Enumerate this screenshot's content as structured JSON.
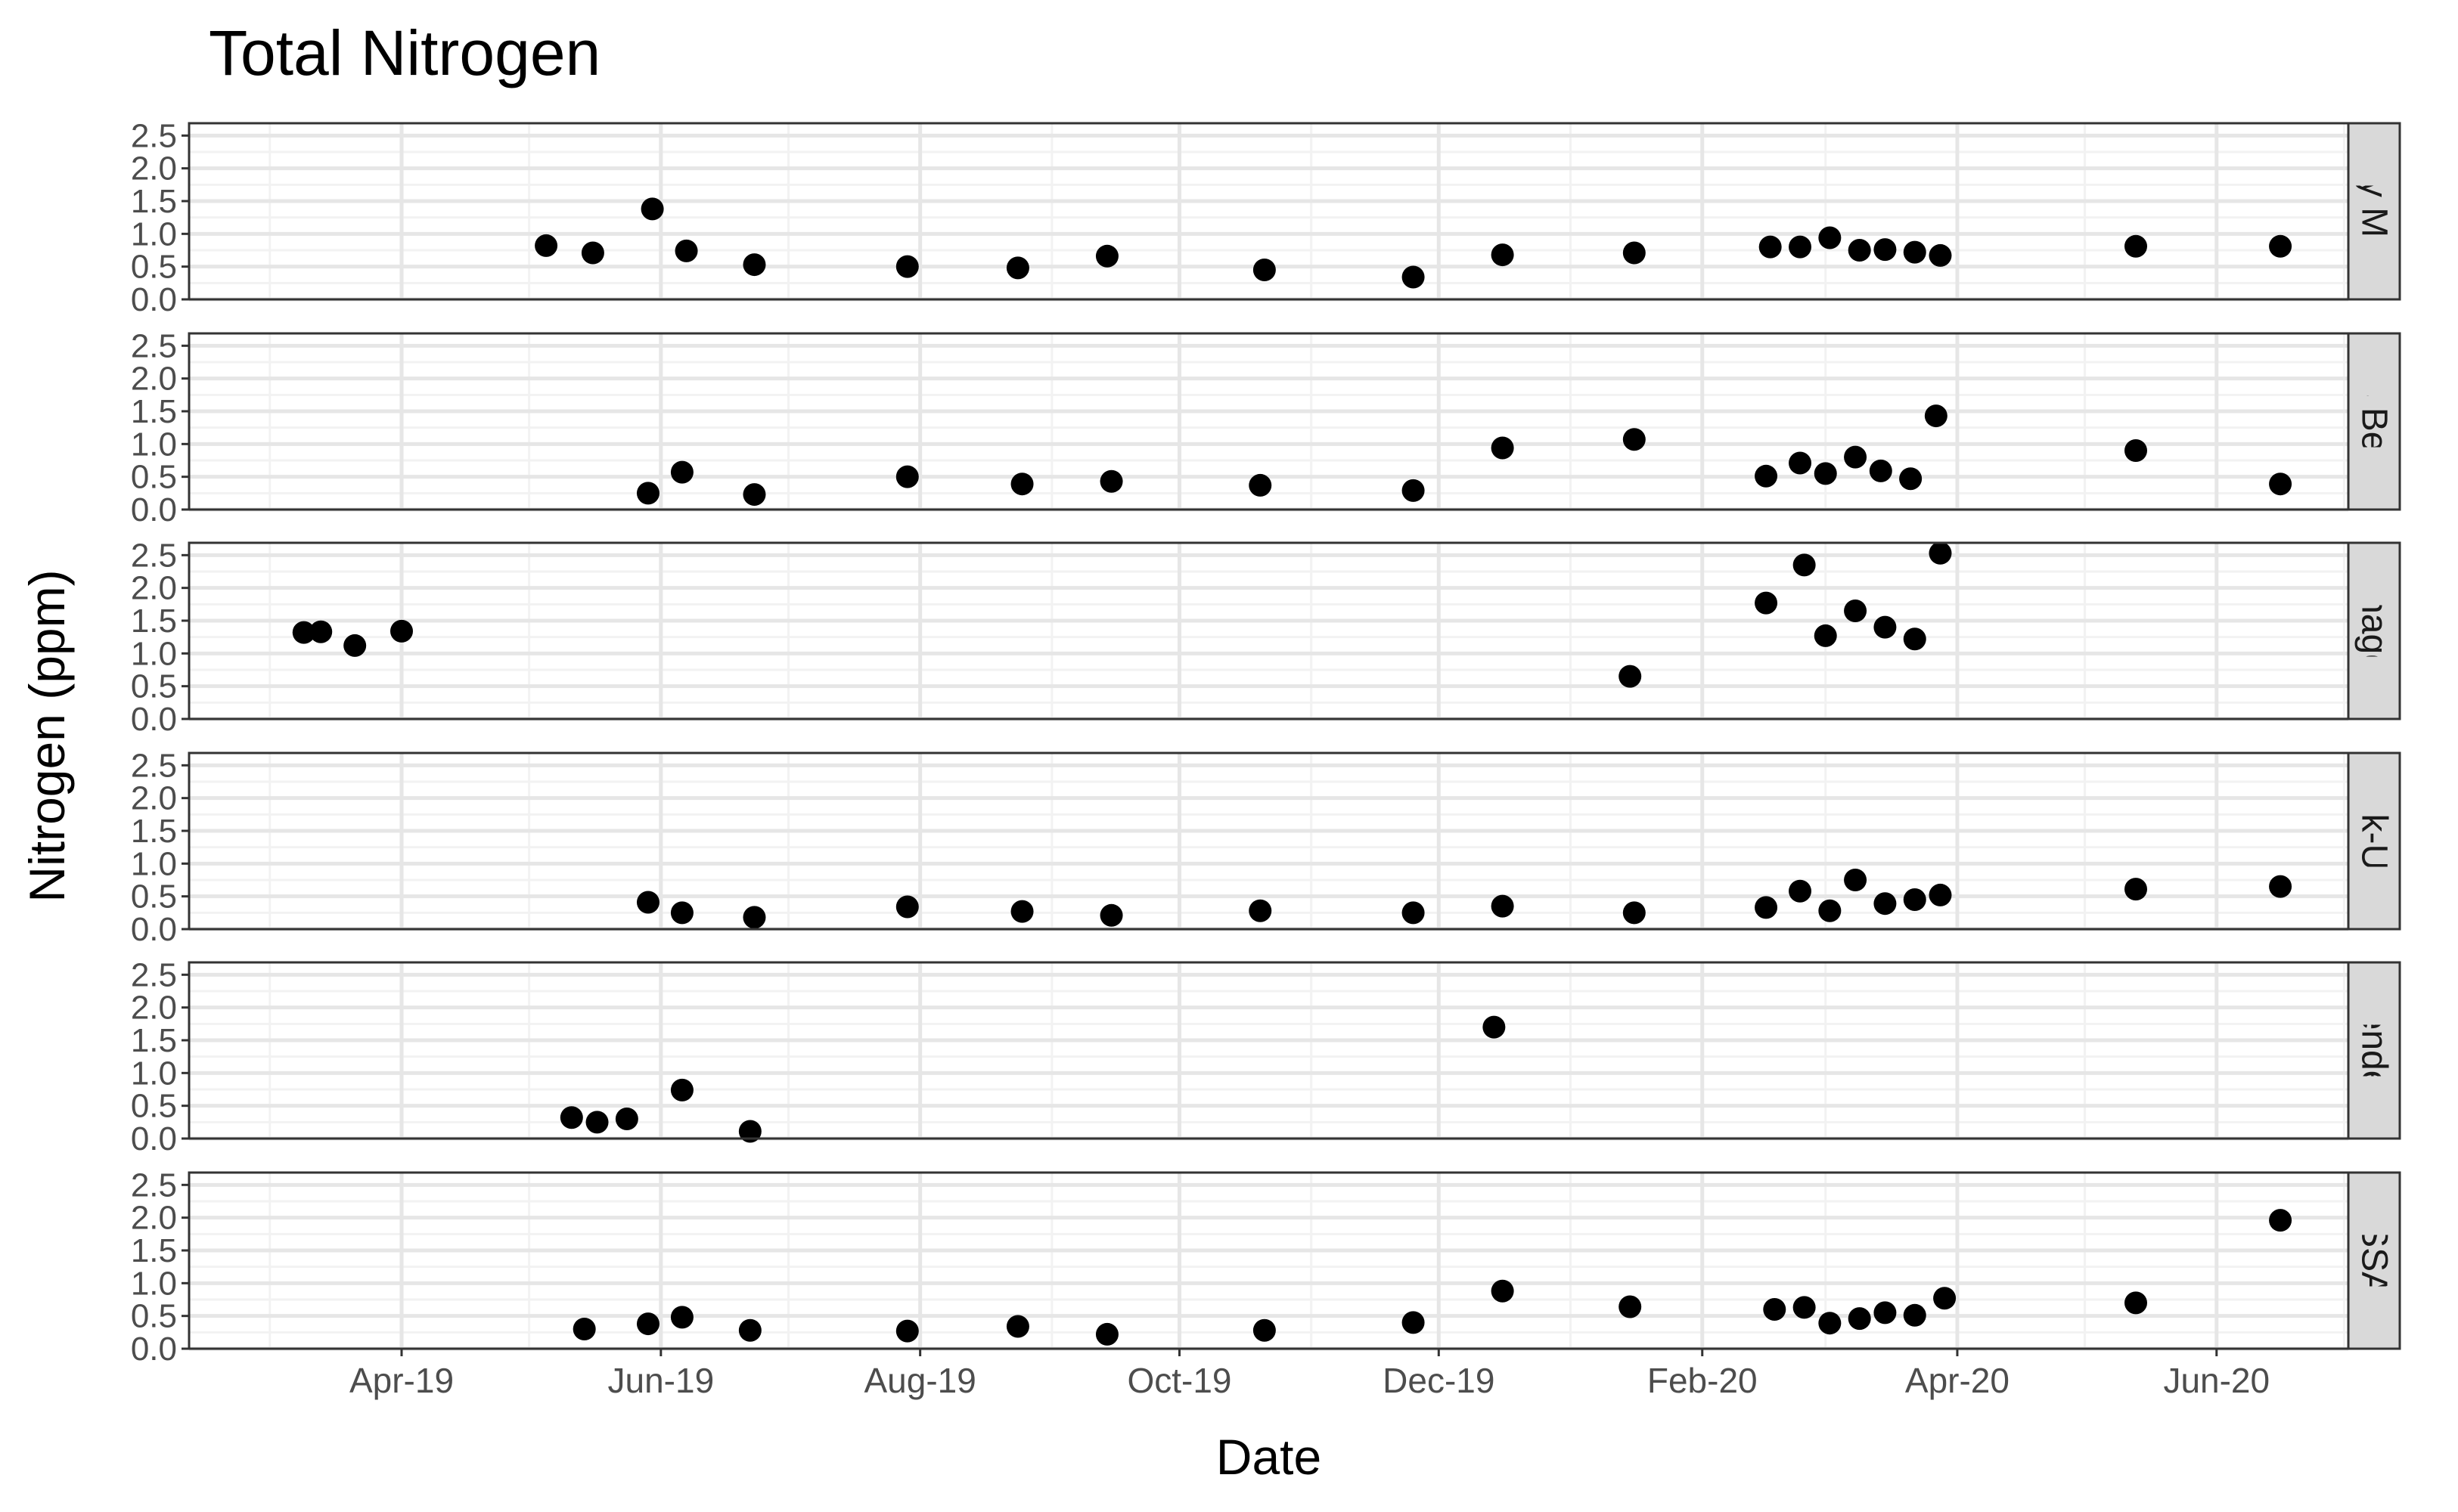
{
  "chart_data": {
    "type": "scatter",
    "title": "Total Nitrogen",
    "xlabel": "Date",
    "ylabel": "Nitrogen (ppm)",
    "x_ticks": [
      "Apr-19",
      "Jun-19",
      "Aug-19",
      "Oct-19",
      "Dec-19",
      "Feb-20",
      "Apr-20",
      "Jun-20"
    ],
    "y_ticks": [
      "0.0",
      "0.5",
      "1.0",
      "1.5",
      "2.0",
      "2.5"
    ],
    "ylim": [
      0,
      2.55
    ],
    "xlim": [
      "2019-02-10",
      "2020-07-02"
    ],
    "grid": true,
    "facets": [
      {
        "label": "Baby Marsh",
        "points": [
          {
            "x": "2019-05-05",
            "y": 0.82
          },
          {
            "x": "2019-05-16",
            "y": 0.71
          },
          {
            "x": "2019-05-30",
            "y": 1.38
          },
          {
            "x": "2019-06-07",
            "y": 0.74
          },
          {
            "x": "2019-06-23",
            "y": 0.53
          },
          {
            "x": "2019-07-29",
            "y": 0.5
          },
          {
            "x": "2019-08-24",
            "y": 0.48
          },
          {
            "x": "2019-09-14",
            "y": 0.66
          },
          {
            "x": "2019-10-21",
            "y": 0.45
          },
          {
            "x": "2019-11-25",
            "y": 0.34
          },
          {
            "x": "2019-12-16",
            "y": 0.68
          },
          {
            "x": "2020-01-16",
            "y": 0.71
          },
          {
            "x": "2020-02-17",
            "y": 0.8
          },
          {
            "x": "2020-02-24",
            "y": 0.8
          },
          {
            "x": "2020-03-02",
            "y": 0.94
          },
          {
            "x": "2020-03-09",
            "y": 0.75
          },
          {
            "x": "2020-03-15",
            "y": 0.76
          },
          {
            "x": "2020-03-22",
            "y": 0.72
          },
          {
            "x": "2020-03-28",
            "y": 0.67
          },
          {
            "x": "2020-05-13",
            "y": 0.81
          },
          {
            "x": "2020-06-16",
            "y": 0.81
          }
        ]
      },
      {
        "label": "Cos Beach",
        "points": [
          {
            "x": "2019-05-29",
            "y": 0.25
          },
          {
            "x": "2019-06-06",
            "y": 0.57
          },
          {
            "x": "2019-06-23",
            "y": 0.23
          },
          {
            "x": "2019-07-29",
            "y": 0.5
          },
          {
            "x": "2019-08-25",
            "y": 0.39
          },
          {
            "x": "2019-09-15",
            "y": 0.43
          },
          {
            "x": "2019-10-20",
            "y": 0.37
          },
          {
            "x": "2019-11-25",
            "y": 0.29
          },
          {
            "x": "2019-12-16",
            "y": 0.94
          },
          {
            "x": "2020-01-16",
            "y": 1.07
          },
          {
            "x": "2020-02-16",
            "y": 0.51
          },
          {
            "x": "2020-02-24",
            "y": 0.71
          },
          {
            "x": "2020-03-01",
            "y": 0.55
          },
          {
            "x": "2020-03-08",
            "y": 0.8
          },
          {
            "x": "2020-03-14",
            "y": 0.59
          },
          {
            "x": "2020-03-21",
            "y": 0.47
          },
          {
            "x": "2020-03-27",
            "y": 1.43
          },
          {
            "x": "2020-05-13",
            "y": 0.9
          },
          {
            "x": "2020-06-16",
            "y": 0.39
          }
        ]
      },
      {
        "label": "Knaggs",
        "points": [
          {
            "x": "2019-03-09",
            "y": 1.32
          },
          {
            "x": "2019-03-13",
            "y": 1.33
          },
          {
            "x": "2019-03-21",
            "y": 1.12
          },
          {
            "x": "2019-04-01",
            "y": 1.34
          },
          {
            "x": "2020-01-15",
            "y": 0.65
          },
          {
            "x": "2020-02-16",
            "y": 1.77
          },
          {
            "x": "2020-02-25",
            "y": 2.35
          },
          {
            "x": "2020-03-01",
            "y": 1.27
          },
          {
            "x": "2020-03-08",
            "y": 1.65
          },
          {
            "x": "2020-03-15",
            "y": 1.4
          },
          {
            "x": "2020-03-22",
            "y": 1.22
          },
          {
            "x": "2020-03-28",
            "y": 2.53
          }
        ]
      },
      {
        "label": "Klok-USR",
        "points": [
          {
            "x": "2019-05-29",
            "y": 0.41
          },
          {
            "x": "2019-06-06",
            "y": 0.25
          },
          {
            "x": "2019-06-23",
            "y": 0.18
          },
          {
            "x": "2019-07-29",
            "y": 0.34
          },
          {
            "x": "2019-08-25",
            "y": 0.27
          },
          {
            "x": "2019-09-15",
            "y": 0.21
          },
          {
            "x": "2019-10-20",
            "y": 0.28
          },
          {
            "x": "2019-11-25",
            "y": 0.25
          },
          {
            "x": "2019-12-16",
            "y": 0.35
          },
          {
            "x": "2020-01-16",
            "y": 0.25
          },
          {
            "x": "2020-02-16",
            "y": 0.33
          },
          {
            "x": "2020-02-24",
            "y": 0.58
          },
          {
            "x": "2020-03-02",
            "y": 0.28
          },
          {
            "x": "2020-03-08",
            "y": 0.75
          },
          {
            "x": "2020-03-15",
            "y": 0.39
          },
          {
            "x": "2020-03-22",
            "y": 0.45
          },
          {
            "x": "2020-03-28",
            "y": 0.52
          },
          {
            "x": "2020-05-13",
            "y": 0.61
          },
          {
            "x": "2020-06-16",
            "y": 0.65
          }
        ]
      },
      {
        "label": "Wendells",
        "points": [
          {
            "x": "2019-05-11",
            "y": 0.32
          },
          {
            "x": "2019-05-17",
            "y": 0.25
          },
          {
            "x": "2019-05-24",
            "y": 0.3
          },
          {
            "x": "2019-06-06",
            "y": 0.74
          },
          {
            "x": "2019-06-22",
            "y": 0.11
          },
          {
            "x": "2019-12-14",
            "y": 1.7
          }
        ]
      },
      {
        "label": "XSSAC",
        "points": [
          {
            "x": "2019-05-14",
            "y": 0.3
          },
          {
            "x": "2019-05-29",
            "y": 0.38
          },
          {
            "x": "2019-06-06",
            "y": 0.48
          },
          {
            "x": "2019-06-22",
            "y": 0.28
          },
          {
            "x": "2019-07-29",
            "y": 0.27
          },
          {
            "x": "2019-08-24",
            "y": 0.34
          },
          {
            "x": "2019-09-14",
            "y": 0.22
          },
          {
            "x": "2019-10-21",
            "y": 0.28
          },
          {
            "x": "2019-11-25",
            "y": 0.4
          },
          {
            "x": "2019-12-16",
            "y": 0.88
          },
          {
            "x": "2020-01-15",
            "y": 0.64
          },
          {
            "x": "2020-02-18",
            "y": 0.6
          },
          {
            "x": "2020-02-25",
            "y": 0.63
          },
          {
            "x": "2020-03-02",
            "y": 0.39
          },
          {
            "x": "2020-03-09",
            "y": 0.46
          },
          {
            "x": "2020-03-15",
            "y": 0.55
          },
          {
            "x": "2020-03-22",
            "y": 0.51
          },
          {
            "x": "2020-03-29",
            "y": 0.77
          },
          {
            "x": "2020-05-13",
            "y": 0.7
          },
          {
            "x": "2020-06-16",
            "y": 1.96
          }
        ]
      }
    ],
    "colors": {
      "point": "#000000",
      "panel_border": "#333333",
      "grid_major": "#e6e6e6",
      "grid_minor": "#f2f2f2",
      "strip_fill": "#d9d9d9",
      "tick_text": "#4d4d4d"
    }
  }
}
